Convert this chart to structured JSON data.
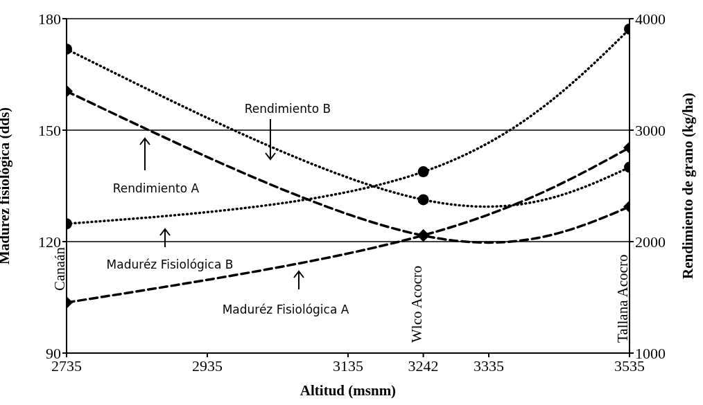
{
  "chart_data": {
    "type": "line",
    "xlabel": "Altitud (msnm)",
    "ylabel": "Madurez fisiológica (dds)",
    "y2label": "Rendimiento de grano (kg/ha)",
    "x": [
      2735,
      3242,
      3535
    ],
    "series": [
      {
        "color": "#000000",
        "values": [
          103.6,
          121.7,
          145.3
        ],
        "marker": "diamond",
        "line_style": "dashed"
      },
      {
        "color": "#000000",
        "values": [
          124.8,
          138.8,
          177.2
        ],
        "marker": "circle",
        "line_style": "dotted"
      },
      {
        "color": "#000000",
        "values": [
          3349,
          2054,
          2314
        ],
        "marker": "diamond",
        "line_style": "dashed",
        "axis": "y2"
      },
      {
        "color": "#000000",
        "values": [
          3727,
          2376,
          2667
        ],
        "marker": "circle",
        "line_style": "dotted",
        "axis": "y2"
      }
    ],
    "xlim": [
      2735,
      3535
    ],
    "xticks": [
      2735,
      2935,
      3135,
      3242,
      3335,
      3535
    ],
    "ylim": [
      90,
      180
    ],
    "yticks": [
      90,
      120,
      150,
      180
    ],
    "y2lim": [
      1000,
      4000
    ],
    "y2ticks": [
      1000,
      2000,
      3000,
      4000
    ],
    "grid": "y",
    "annotations": [
      "Rendimiento B",
      "Rendimiento A",
      "Maduréz Fisiológica B",
      "Maduréz Fisiológica A",
      "Canaán",
      "Wlco Acocro",
      "Tallana Acocro"
    ]
  }
}
